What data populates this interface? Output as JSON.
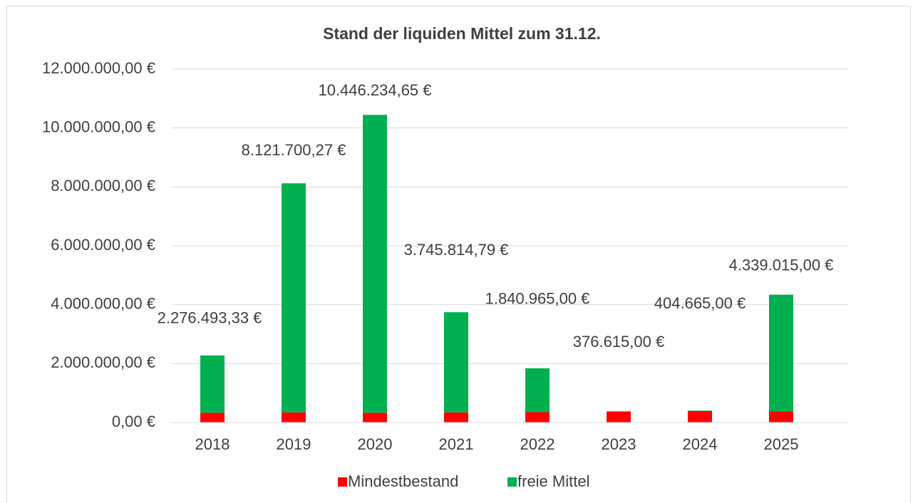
{
  "chart_data": {
    "type": "stacked_bar",
    "title": "Stand der liquiden Mittel zum 31.12.",
    "categories": [
      "2018",
      "2019",
      "2020",
      "2021",
      "2022",
      "2023",
      "2024",
      "2025"
    ],
    "series": [
      {
        "name": "Mindestbestand",
        "color": "#ff0000",
        "values": [
          330000,
          340000,
          330000,
          340000,
          350000,
          376615,
          390000,
          380000
        ]
      },
      {
        "name": "freie Mittel",
        "color": "#00b050",
        "values": [
          1946493.33,
          7781700.27,
          10116234.65,
          3405814.79,
          1490965,
          0,
          14665,
          3959015
        ]
      }
    ],
    "totals": {
      "values": [
        2276493.33,
        8121700.27,
        10446234.65,
        3745814.79,
        1840965,
        376615,
        404665,
        4339015
      ],
      "value_labels": [
        "2.276.493,33 €",
        "8.121.700,27 €",
        "10.446.234,65 €",
        "3.745.814,79 €",
        "1.840.965,00 €",
        "376.615,00 €",
        "404.665,00 €",
        "4.339.015,00 €"
      ]
    },
    "ylim": [
      0,
      12000000
    ],
    "yticks": [
      {
        "value": 0,
        "label": "0,00 €"
      },
      {
        "value": 2000000,
        "label": "2.000.000,00 €"
      },
      {
        "value": 4000000,
        "label": "4.000.000,00 €"
      },
      {
        "value": 6000000,
        "label": "6.000.000,00 €"
      },
      {
        "value": 8000000,
        "label": "8.000.000,00 €"
      },
      {
        "value": 10000000,
        "label": "10.000.000,00 €"
      },
      {
        "value": 12000000,
        "label": "12.000.000,00 €"
      }
    ],
    "grid": true,
    "legend": "bottom"
  }
}
